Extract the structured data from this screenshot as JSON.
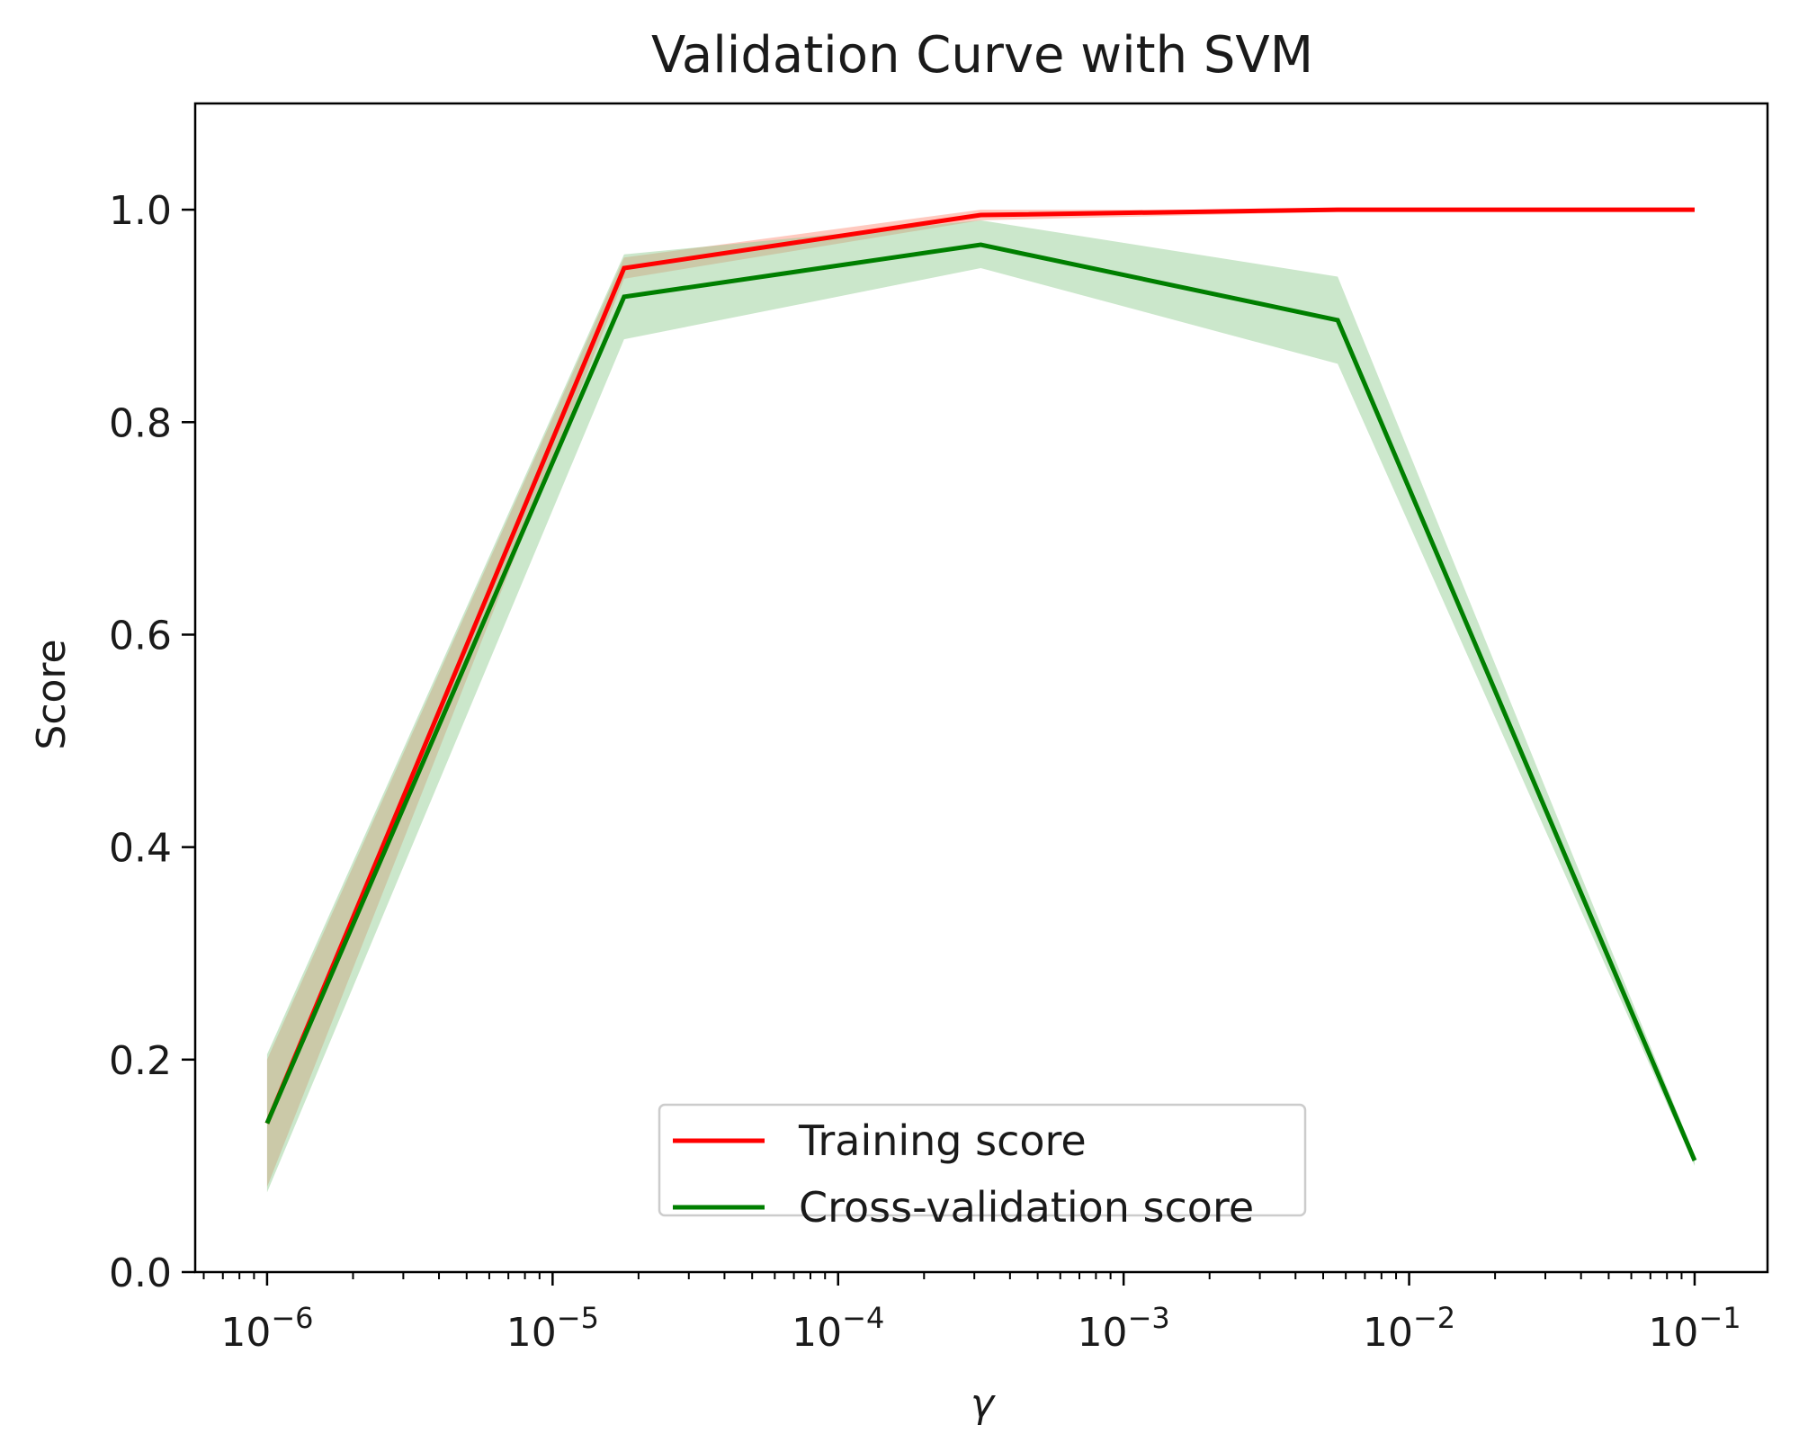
{
  "chart_data": {
    "type": "line",
    "title": "Validation Curve with SVM",
    "xlabel": "γ",
    "ylabel": "Score",
    "xscale": "log",
    "xlim": [
      5.6e-07,
      0.18
    ],
    "ylim": [
      0.0,
      1.1
    ],
    "x_ticks": [
      {
        "value": 1e-06,
        "base": "10",
        "exp": "−6"
      },
      {
        "value": 1e-05,
        "base": "10",
        "exp": "−5"
      },
      {
        "value": 0.0001,
        "base": "10",
        "exp": "−4"
      },
      {
        "value": 0.001,
        "base": "10",
        "exp": "−3"
      },
      {
        "value": 0.01,
        "base": "10",
        "exp": "−2"
      },
      {
        "value": 0.1,
        "base": "10",
        "exp": "−1"
      }
    ],
    "y_ticks": [
      {
        "value": 0.0,
        "label": "0.0"
      },
      {
        "value": 0.2,
        "label": "0.2"
      },
      {
        "value": 0.4,
        "label": "0.4"
      },
      {
        "value": 0.6,
        "label": "0.6"
      },
      {
        "value": 0.8,
        "label": "0.8"
      },
      {
        "value": 1.0,
        "label": "1.0"
      }
    ],
    "x": [
      1e-06,
      1.78e-05,
      0.000316,
      0.00562,
      0.1
    ],
    "grid": false,
    "legend_position": "lower center",
    "series": [
      {
        "name": "Training score",
        "color": "#ff0000",
        "band_color": "#ff9d8a",
        "values": [
          0.14,
          0.945,
          0.995,
          1.0,
          1.0
        ],
        "band_lower": [
          0.08,
          0.935,
          0.99,
          0.998,
          0.998
        ],
        "band_upper": [
          0.2,
          0.955,
          1.0,
          1.0,
          1.0
        ]
      },
      {
        "name": "Cross-validation score",
        "color": "#007f00",
        "band_color": "#8cc98c",
        "values": [
          0.14,
          0.918,
          0.967,
          0.896,
          0.105
        ],
        "band_lower": [
          0.075,
          0.878,
          0.945,
          0.855,
          0.1
        ],
        "band_upper": [
          0.205,
          0.958,
          0.99,
          0.937,
          0.11
        ]
      }
    ]
  }
}
